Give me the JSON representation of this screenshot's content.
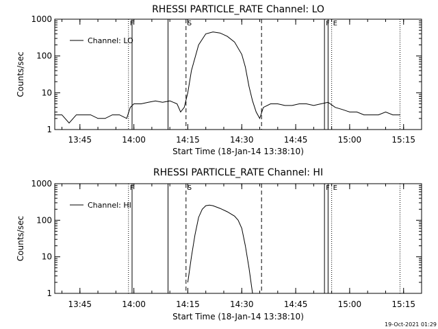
{
  "chart_data": [
    {
      "type": "line",
      "title": "RHESSI PARTICLE_RATE Channel: LO",
      "xlabel": "Start Time (18-Jan-14 13:38:10)",
      "ylabel": "Counts/sec",
      "xlim": [
        "13:38",
        "15:20"
      ],
      "ylim": [
        1,
        1000
      ],
      "yscale": "log",
      "x_ticks": [
        "13:45",
        "14:00",
        "14:15",
        "14:30",
        "14:45",
        "15:00",
        "15:15"
      ],
      "y_ticks": [
        "1",
        "10",
        "100",
        "1000"
      ],
      "legend": {
        "position": "top-left",
        "entries": [
          "Channel: LO"
        ]
      },
      "grid": false,
      "markers": [
        {
          "time": "13:58.5",
          "style": "dotted",
          "label": "F"
        },
        {
          "time": "13:59.5",
          "style": "solid",
          "label": ""
        },
        {
          "time": "14:09.5",
          "style": "solid",
          "label": ""
        },
        {
          "time": "14:14.5",
          "style": "dashed",
          "label": "S"
        },
        {
          "time": "14:35.5",
          "style": "dashed",
          "label": ""
        },
        {
          "time": "14:53.0",
          "style": "solid",
          "label": "F"
        },
        {
          "time": "14:54.0",
          "style": "solid",
          "label": ""
        },
        {
          "time": "14:55.0",
          "style": "dotted",
          "label": "E"
        },
        {
          "time": "15:14.0",
          "style": "dotted",
          "label": ""
        }
      ],
      "series": [
        {
          "x": [
            "13:38",
            "13:40",
            "13:42",
            "13:44",
            "13:46",
            "13:48",
            "13:50",
            "13:52",
            "13:54",
            "13:56",
            "13:58",
            "13:59",
            "14:00",
            "14:02",
            "14:04",
            "14:06",
            "14:08",
            "14:10",
            "14:12",
            "14:13",
            "14:14",
            "14:15",
            "14:16",
            "14:18",
            "14:20",
            "14:22",
            "14:24",
            "14:26",
            "14:28",
            "14:30",
            "14:31",
            "14:32",
            "14:33",
            "14:34",
            "14:35",
            "14:36",
            "14:38",
            "14:40",
            "14:42",
            "14:44",
            "14:46",
            "14:48",
            "14:50",
            "14:52",
            "14:54",
            "14:56",
            "14:58",
            "15:00",
            "15:02",
            "15:04",
            "15:06",
            "15:08",
            "15:10",
            "15:12",
            "15:14"
          ],
          "y": [
            2.5,
            2.5,
            1.5,
            2.5,
            2.5,
            2.5,
            2.0,
            2.0,
            2.5,
            2.5,
            2.0,
            4.0,
            5.0,
            5.0,
            5.5,
            6.0,
            5.5,
            6.0,
            5.0,
            3.0,
            4.0,
            10,
            40,
            200,
            400,
            450,
            420,
            340,
            240,
            110,
            50,
            15,
            6,
            3,
            2,
            4,
            5,
            5,
            4.5,
            4.5,
            5,
            5,
            4.5,
            5,
            5.5,
            4,
            3.5,
            3,
            3,
            2.5,
            2.5,
            2.5,
            3,
            2.5,
            2.5
          ]
        }
      ]
    },
    {
      "type": "line",
      "title": "RHESSI PARTICLE_RATE Channel: HI",
      "xlabel": "Start Time (18-Jan-14 13:38:10)",
      "ylabel": "Counts/sec",
      "xlim": [
        "13:38",
        "15:20"
      ],
      "ylim": [
        1,
        1000
      ],
      "yscale": "log",
      "x_ticks": [
        "13:45",
        "14:00",
        "14:15",
        "14:30",
        "14:45",
        "15:00",
        "15:15"
      ],
      "y_ticks": [
        "1",
        "10",
        "100",
        "1000"
      ],
      "legend": {
        "position": "top-left",
        "entries": [
          "Channel: HI"
        ]
      },
      "grid": false,
      "markers": [
        {
          "time": "13:58.5",
          "style": "dotted",
          "label": "F"
        },
        {
          "time": "13:59.5",
          "style": "solid",
          "label": ""
        },
        {
          "time": "14:09.5",
          "style": "solid",
          "label": ""
        },
        {
          "time": "14:14.5",
          "style": "dashed",
          "label": "S"
        },
        {
          "time": "14:35.5",
          "style": "dashed",
          "label": ""
        },
        {
          "time": "14:53.0",
          "style": "solid",
          "label": "F"
        },
        {
          "time": "14:54.0",
          "style": "solid",
          "label": ""
        },
        {
          "time": "14:55.0",
          "style": "dotted",
          "label": "E"
        },
        {
          "time": "15:14.0",
          "style": "dotted",
          "label": ""
        }
      ],
      "series": [
        {
          "x": [
            "14:15",
            "14:16",
            "14:17",
            "14:18",
            "14:19",
            "14:20",
            "14:21",
            "14:22",
            "14:24",
            "14:26",
            "14:28",
            "14:29",
            "14:30",
            "14:31",
            "14:32",
            "14:33"
          ],
          "y": [
            2,
            10,
            40,
            120,
            200,
            250,
            260,
            250,
            210,
            170,
            130,
            100,
            60,
            20,
            5,
            1
          ]
        }
      ]
    }
  ],
  "timestamp": "19-Oct-2021 01:29"
}
